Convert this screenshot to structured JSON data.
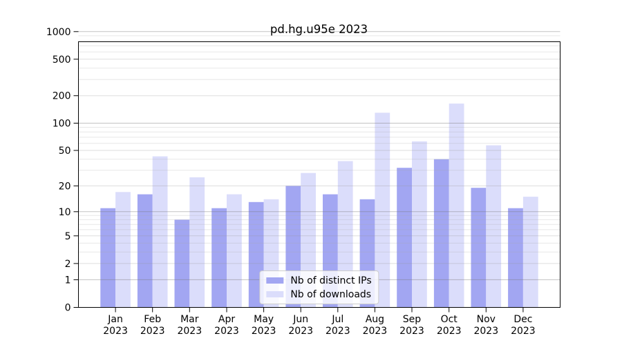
{
  "chart_data": {
    "type": "bar",
    "title": "pd.hg.u95e 2023",
    "categories": [
      "Jan",
      "Feb",
      "Mar",
      "Apr",
      "May",
      "Jun",
      "Jul",
      "Aug",
      "Sep",
      "Oct",
      "Nov",
      "Dec"
    ],
    "category_year": "2023",
    "series": [
      {
        "name": "Nb of distinct IPs",
        "color": "#a2a6f2",
        "values": [
          11,
          16,
          8,
          11,
          13,
          20,
          16,
          14,
          32,
          40,
          19,
          11
        ]
      },
      {
        "name": "Nb of downloads",
        "color": "#dbddfb",
        "values": [
          17,
          43,
          25,
          16,
          14,
          28,
          38,
          130,
          63,
          164,
          57,
          15
        ]
      }
    ],
    "y_ticks": [
      0,
      1,
      2,
      5,
      10,
      20,
      50,
      100,
      200,
      500,
      1000
    ],
    "y_minor_gridlines": [
      3,
      4,
      6,
      7,
      8,
      9,
      30,
      40,
      60,
      70,
      80,
      90,
      300,
      400,
      600,
      700,
      800,
      900
    ],
    "y_mid_gridlines": [
      2,
      5,
      20,
      50,
      200,
      500
    ],
    "y_major_gridlines": [
      1,
      10,
      100,
      1000
    ],
    "y_scale": "log1p",
    "ylim": [
      0,
      1000
    ],
    "grid": "both",
    "legend_position": "lower center",
    "xlabel": "",
    "ylabel": ""
  }
}
